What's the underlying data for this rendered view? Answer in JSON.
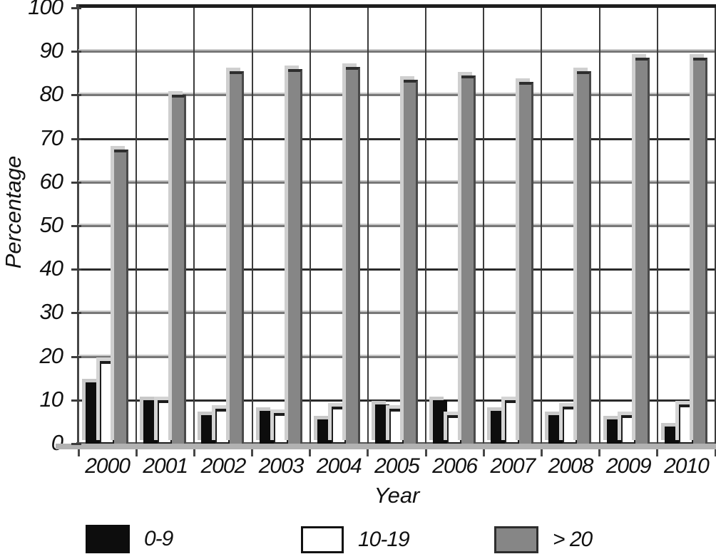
{
  "chart_data": {
    "type": "bar",
    "title": "",
    "xlabel": "Year",
    "ylabel": "Percentage",
    "ylim": [
      0,
      100
    ],
    "yticks": [
      0,
      10,
      20,
      30,
      40,
      50,
      60,
      70,
      80,
      90,
      100
    ],
    "grid": "both",
    "legend_position": "bottom",
    "categories": [
      "2000",
      "2001",
      "2002",
      "2003",
      "2004",
      "2005",
      "2006",
      "2007",
      "2008",
      "2009",
      "2010"
    ],
    "series": [
      {
        "name": "0-9",
        "color": "#0d0d0d",
        "values": [
          14,
          10,
          6.5,
          7.5,
          5.5,
          9,
          10,
          7.5,
          6.5,
          5.5,
          4
        ]
      },
      {
        "name": "10-19",
        "color": "#ffffff",
        "values": [
          19,
          10,
          8,
          7,
          8.5,
          8,
          6.5,
          10,
          8.5,
          6.5,
          9
        ]
      },
      {
        "name": "> 20",
        "color": "#868686",
        "values": [
          67.5,
          80,
          85.5,
          86,
          86.5,
          83.5,
          84.5,
          83,
          85.5,
          88.5,
          88.5
        ]
      }
    ]
  },
  "colors": {
    "grid_dark": "#2b2b2b",
    "grid_light": "#c9c9c9",
    "grid_mid": "#787878",
    "axis": "#464646",
    "axis_band": "#b2b2b2",
    "bar_shadow": "#c8c8c8"
  }
}
